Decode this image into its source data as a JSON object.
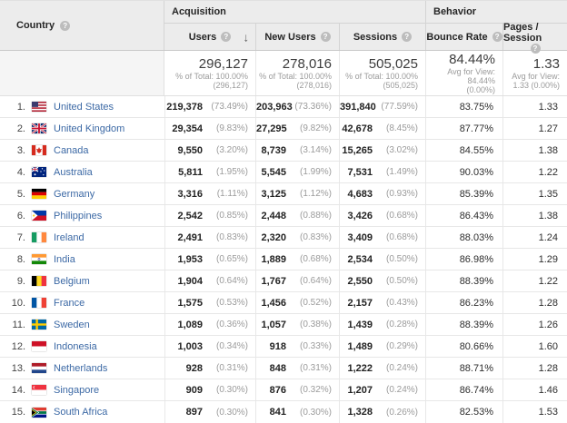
{
  "header": {
    "country_label": "Country",
    "group_acquisition": "Acquisition",
    "group_behavior": "Behavior",
    "metrics": [
      "Users",
      "New Users",
      "Sessions",
      "Bounce Rate",
      "Pages / Session"
    ],
    "sort_icon": "down-arrow",
    "help_glyph": "?"
  },
  "totals": {
    "users": {
      "value": "296,127",
      "sub1": "% of Total: 100.00%",
      "sub2": "(296,127)"
    },
    "new_users": {
      "value": "278,016",
      "sub1": "% of Total: 100.00%",
      "sub2": "(278,016)"
    },
    "sessions": {
      "value": "505,025",
      "sub1": "% of Total: 100.00%",
      "sub2": "(505,025)"
    },
    "bounce_rate": {
      "value": "84.44%",
      "sub1": "Avg for View: 84.44%",
      "sub2": "(0.00%)"
    },
    "pages_session": {
      "value": "1.33",
      "sub1": "Avg for View:",
      "sub2": "1.33 (0.00%)"
    }
  },
  "rows": [
    {
      "rank": "1.",
      "flag": "us",
      "country": "United States",
      "users": "219,378",
      "users_pct": "(73.49%)",
      "new_users": "203,963",
      "new_users_pct": "(73.36%)",
      "sessions": "391,840",
      "sessions_pct": "(77.59%)",
      "bounce_rate": "83.75%",
      "pages_session": "1.33"
    },
    {
      "rank": "2.",
      "flag": "gb",
      "country": "United Kingdom",
      "users": "29,354",
      "users_pct": "(9.83%)",
      "new_users": "27,295",
      "new_users_pct": "(9.82%)",
      "sessions": "42,678",
      "sessions_pct": "(8.45%)",
      "bounce_rate": "87.77%",
      "pages_session": "1.27"
    },
    {
      "rank": "3.",
      "flag": "ca",
      "country": "Canada",
      "users": "9,550",
      "users_pct": "(3.20%)",
      "new_users": "8,739",
      "new_users_pct": "(3.14%)",
      "sessions": "15,265",
      "sessions_pct": "(3.02%)",
      "bounce_rate": "84.55%",
      "pages_session": "1.38"
    },
    {
      "rank": "4.",
      "flag": "au",
      "country": "Australia",
      "users": "5,811",
      "users_pct": "(1.95%)",
      "new_users": "5,545",
      "new_users_pct": "(1.99%)",
      "sessions": "7,531",
      "sessions_pct": "(1.49%)",
      "bounce_rate": "90.03%",
      "pages_session": "1.22"
    },
    {
      "rank": "5.",
      "flag": "de",
      "country": "Germany",
      "users": "3,316",
      "users_pct": "(1.11%)",
      "new_users": "3,125",
      "new_users_pct": "(1.12%)",
      "sessions": "4,683",
      "sessions_pct": "(0.93%)",
      "bounce_rate": "85.39%",
      "pages_session": "1.35"
    },
    {
      "rank": "6.",
      "flag": "ph",
      "country": "Philippines",
      "users": "2,542",
      "users_pct": "(0.85%)",
      "new_users": "2,448",
      "new_users_pct": "(0.88%)",
      "sessions": "3,426",
      "sessions_pct": "(0.68%)",
      "bounce_rate": "86.43%",
      "pages_session": "1.38"
    },
    {
      "rank": "7.",
      "flag": "ie",
      "country": "Ireland",
      "users": "2,491",
      "users_pct": "(0.83%)",
      "new_users": "2,320",
      "new_users_pct": "(0.83%)",
      "sessions": "3,409",
      "sessions_pct": "(0.68%)",
      "bounce_rate": "88.03%",
      "pages_session": "1.24"
    },
    {
      "rank": "8.",
      "flag": "in",
      "country": "India",
      "users": "1,953",
      "users_pct": "(0.65%)",
      "new_users": "1,889",
      "new_users_pct": "(0.68%)",
      "sessions": "2,534",
      "sessions_pct": "(0.50%)",
      "bounce_rate": "86.98%",
      "pages_session": "1.29"
    },
    {
      "rank": "9.",
      "flag": "be",
      "country": "Belgium",
      "users": "1,904",
      "users_pct": "(0.64%)",
      "new_users": "1,767",
      "new_users_pct": "(0.64%)",
      "sessions": "2,550",
      "sessions_pct": "(0.50%)",
      "bounce_rate": "88.39%",
      "pages_session": "1.22"
    },
    {
      "rank": "10.",
      "flag": "fr",
      "country": "France",
      "users": "1,575",
      "users_pct": "(0.53%)",
      "new_users": "1,456",
      "new_users_pct": "(0.52%)",
      "sessions": "2,157",
      "sessions_pct": "(0.43%)",
      "bounce_rate": "86.23%",
      "pages_session": "1.28"
    },
    {
      "rank": "11.",
      "flag": "se",
      "country": "Sweden",
      "users": "1,089",
      "users_pct": "(0.36%)",
      "new_users": "1,057",
      "new_users_pct": "(0.38%)",
      "sessions": "1,439",
      "sessions_pct": "(0.28%)",
      "bounce_rate": "88.39%",
      "pages_session": "1.26"
    },
    {
      "rank": "12.",
      "flag": "id",
      "country": "Indonesia",
      "users": "1,003",
      "users_pct": "(0.34%)",
      "new_users": "918",
      "new_users_pct": "(0.33%)",
      "sessions": "1,489",
      "sessions_pct": "(0.29%)",
      "bounce_rate": "80.66%",
      "pages_session": "1.60"
    },
    {
      "rank": "13.",
      "flag": "nl",
      "country": "Netherlands",
      "users": "928",
      "users_pct": "(0.31%)",
      "new_users": "848",
      "new_users_pct": "(0.31%)",
      "sessions": "1,222",
      "sessions_pct": "(0.24%)",
      "bounce_rate": "88.71%",
      "pages_session": "1.28"
    },
    {
      "rank": "14.",
      "flag": "sg",
      "country": "Singapore",
      "users": "909",
      "users_pct": "(0.30%)",
      "new_users": "876",
      "new_users_pct": "(0.32%)",
      "sessions": "1,207",
      "sessions_pct": "(0.24%)",
      "bounce_rate": "86.74%",
      "pages_session": "1.46"
    },
    {
      "rank": "15.",
      "flag": "za",
      "country": "South Africa",
      "users": "897",
      "users_pct": "(0.30%)",
      "new_users": "841",
      "new_users_pct": "(0.30%)",
      "sessions": "1,328",
      "sessions_pct": "(0.26%)",
      "bounce_rate": "82.53%",
      "pages_session": "1.53"
    }
  ],
  "colors": {
    "link_blue": "#3c69a5",
    "header_gray": "#ececec",
    "muted_gray": "#9b9b9b"
  }
}
